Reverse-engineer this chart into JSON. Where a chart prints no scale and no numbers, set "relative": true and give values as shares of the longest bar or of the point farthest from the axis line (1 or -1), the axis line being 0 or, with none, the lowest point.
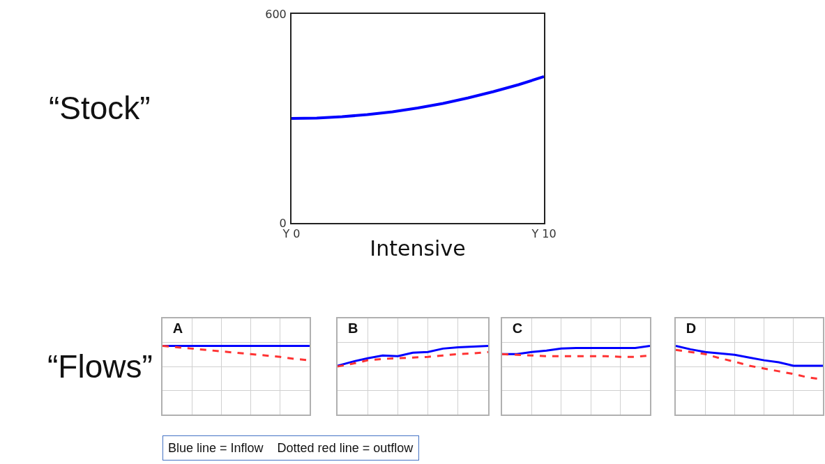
{
  "chart_data": [
    {
      "type": "line",
      "xlabel": "Intensive",
      "annotations": [
        "“Stock”"
      ],
      "categories": [
        "Y 0",
        null,
        null,
        null,
        null,
        null,
        null,
        null,
        null,
        null,
        "Y 10"
      ],
      "ylim": [
        0,
        600
      ],
      "yticks": [
        0,
        600
      ],
      "grid": false,
      "series": [
        {
          "color": "#0000ff",
          "line_style": "solid",
          "values": [
            300,
            301,
            305,
            311,
            319,
            330,
            343,
            359,
            377,
            397,
            420
          ]
        }
      ]
    },
    {
      "type": "line",
      "title": "A",
      "relative": true,
      "grid": true,
      "annotations": [
        "“Flows”",
        "Blue line = Inflow    Dotted red line = outflow"
      ],
      "categories": [
        null,
        null,
        null,
        null,
        null,
        null,
        null,
        null,
        null,
        null,
        null
      ],
      "series": [
        {
          "color": "#0000ff",
          "line_style": "solid",
          "values": [
            1,
            1,
            1,
            1,
            1,
            1,
            1,
            1,
            1,
            1,
            1
          ]
        },
        {
          "color": "#ff3333",
          "line_style": "dashed",
          "values": [
            1,
            0.98,
            0.96,
            0.94,
            0.92,
            0.9,
            0.88,
            0.86,
            0.84,
            0.81,
            0.79
          ]
        }
      ]
    },
    {
      "type": "line",
      "title": "B",
      "relative": true,
      "grid": true,
      "categories": [
        null,
        null,
        null,
        null,
        null,
        null,
        null,
        null,
        null,
        null,
        null
      ],
      "series": [
        {
          "color": "#0000ff",
          "line_style": "solid",
          "values": [
            0.71,
            0.77,
            0.82,
            0.86,
            0.85,
            0.9,
            0.91,
            0.96,
            0.98,
            0.99,
            1
          ]
        },
        {
          "color": "#ff3333",
          "line_style": "dashed",
          "values": [
            0.7,
            0.74,
            0.79,
            0.81,
            0.82,
            0.83,
            0.84,
            0.86,
            0.88,
            0.89,
            0.91
          ]
        }
      ]
    },
    {
      "type": "line",
      "title": "C",
      "relative": true,
      "grid": true,
      "categories": [
        null,
        null,
        null,
        null,
        null,
        null,
        null,
        null,
        null,
        null,
        null
      ],
      "series": [
        {
          "color": "#0000ff",
          "line_style": "solid",
          "values": [
            0.88,
            0.88,
            0.91,
            0.93,
            0.96,
            0.97,
            0.97,
            0.97,
            0.97,
            0.97,
            1
          ]
        },
        {
          "color": "#ff3333",
          "line_style": "dashed",
          "values": [
            0.88,
            0.87,
            0.86,
            0.85,
            0.85,
            0.85,
            0.85,
            0.85,
            0.84,
            0.84,
            0.86
          ]
        }
      ]
    },
    {
      "type": "line",
      "title": "D",
      "relative": true,
      "grid": true,
      "categories": [
        null,
        null,
        null,
        null,
        null,
        null,
        null,
        null,
        null,
        null,
        null
      ],
      "series": [
        {
          "color": "#0000ff",
          "line_style": "solid",
          "values": [
            1,
            0.95,
            0.91,
            0.89,
            0.87,
            0.83,
            0.79,
            0.76,
            0.71,
            0.71,
            0.71
          ]
        },
        {
          "color": "#ff3333",
          "line_style": "dashed",
          "values": [
            0.94,
            0.91,
            0.88,
            0.82,
            0.77,
            0.71,
            0.67,
            0.63,
            0.59,
            0.54,
            0.51
          ]
        }
      ]
    }
  ]
}
